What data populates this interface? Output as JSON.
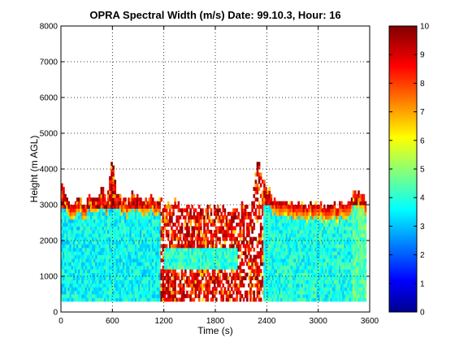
{
  "chart_data": {
    "type": "heatmap",
    "title": "OPRA Spectral Width (m/s)  Date: 99.10.3, Hour: 16",
    "xlabel": "Time (s)",
    "ylabel": "Height (m AGL)",
    "xlim": [
      0,
      3600
    ],
    "ylim": [
      0,
      8000
    ],
    "xticks": [
      "0",
      "600",
      "1200",
      "1800",
      "2400",
      "3000",
      "3600"
    ],
    "yticks": [
      "0",
      "1000",
      "2000",
      "3000",
      "4000",
      "5000",
      "6000",
      "7000",
      "8000"
    ],
    "grid": true,
    "colorbar": {
      "colormap": "jet",
      "range": [
        0,
        10
      ],
      "ticks": [
        "0",
        "1",
        "2",
        "3",
        "4",
        "5",
        "6",
        "7",
        "8",
        "9",
        "10"
      ]
    },
    "data_bottom_m": 300,
    "layers": [
      {
        "name": "",
        "x": [
          0,
          1150
        ],
        "y": [
          300,
          2850
        ],
        "value": 3.8
      },
      {
        "name": "",
        "x": [
          1200,
          2050
        ],
        "y": [
          1200,
          1700
        ],
        "value": 4.2
      },
      {
        "name": "",
        "x": [
          2350,
          3380
        ],
        "y": [
          300,
          2950
        ],
        "value": 4.0
      },
      {
        "name": "",
        "x": [
          3380,
          3560
        ],
        "y": [
          300,
          2950
        ],
        "value": 4.6
      }
    ],
    "echo_top": [
      [
        0,
        3600
      ],
      [
        60,
        3200
      ],
      [
        120,
        2900
      ],
      [
        200,
        3200
      ],
      [
        260,
        2950
      ],
      [
        330,
        3150
      ],
      [
        400,
        3050
      ],
      [
        460,
        3500
      ],
      [
        520,
        3100
      ],
      [
        560,
        3700
      ],
      [
        590,
        4300
      ],
      [
        640,
        3300
      ],
      [
        700,
        3150
      ],
      [
        760,
        3050
      ],
      [
        820,
        3300
      ],
      [
        880,
        3200
      ],
      [
        940,
        3050
      ],
      [
        1000,
        3150
      ],
      [
        1060,
        3250
      ],
      [
        1100,
        3000
      ],
      [
        1160,
        3050
      ],
      [
        1200,
        3000
      ],
      [
        1300,
        3050
      ],
      [
        1400,
        2950
      ],
      [
        1500,
        3000
      ],
      [
        1600,
        2900
      ],
      [
        1700,
        2950
      ],
      [
        1800,
        2850
      ],
      [
        1900,
        2900
      ],
      [
        2000,
        2850
      ],
      [
        2100,
        2950
      ],
      [
        2200,
        3000
      ],
      [
        2250,
        3600
      ],
      [
        2300,
        4300
      ],
      [
        2330,
        3900
      ],
      [
        2400,
        3400
      ],
      [
        2500,
        3000
      ],
      [
        2600,
        3050
      ],
      [
        2700,
        3000
      ],
      [
        2800,
        2950
      ],
      [
        2900,
        3000
      ],
      [
        3000,
        2950
      ],
      [
        3100,
        3000
      ],
      [
        3200,
        2950
      ],
      [
        3300,
        3050
      ],
      [
        3360,
        3000
      ],
      [
        3400,
        3300
      ],
      [
        3500,
        3250
      ],
      [
        3560,
        2950
      ]
    ]
  }
}
